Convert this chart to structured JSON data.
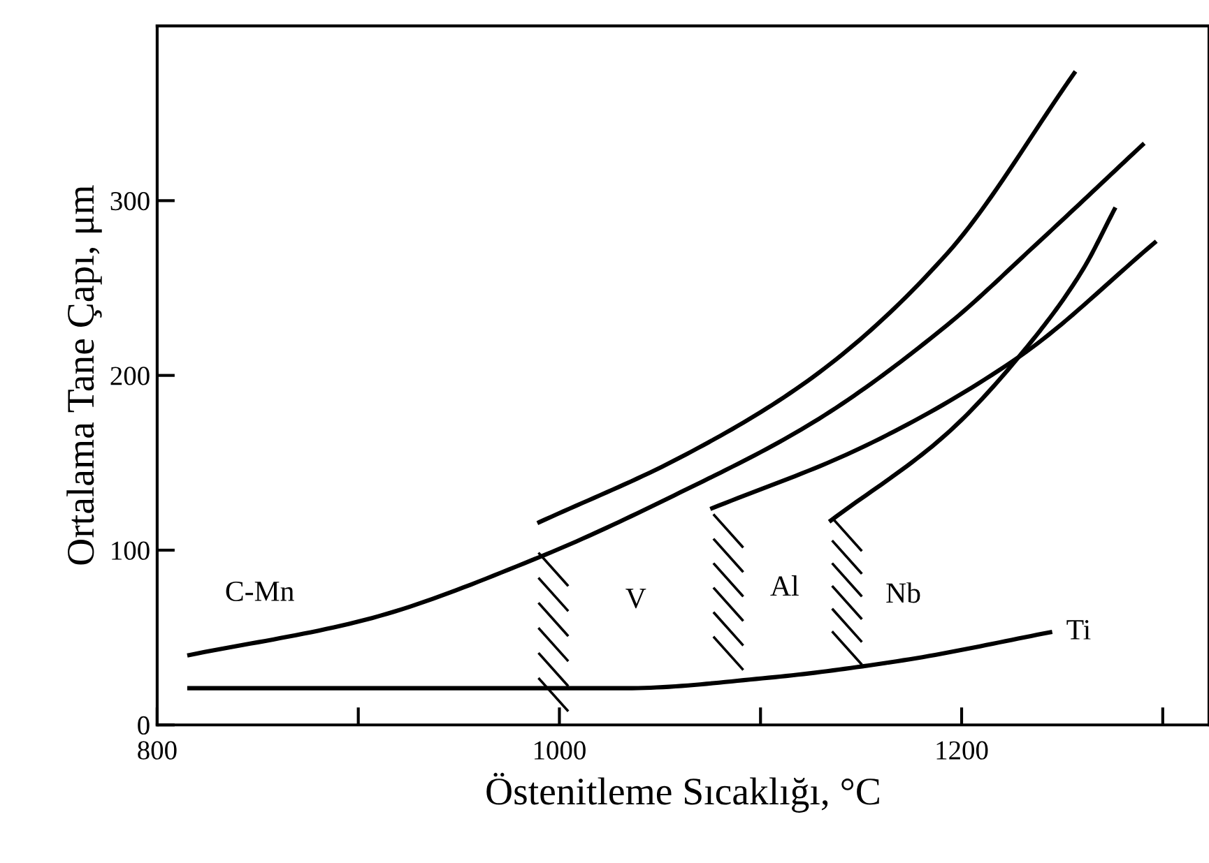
{
  "chart_data": {
    "type": "line",
    "xlabel": "Östenitleme Sıcaklığı, °C",
    "ylabel": "Ortalama Tane Çapı, μm",
    "xlim": [
      800,
      1323
    ],
    "ylim": [
      0,
      400
    ],
    "xticks": [
      800,
      {
        "value": 900,
        "label": null
      },
      1000,
      {
        "value": 1100,
        "label": null
      },
      1200,
      {
        "value": 1300,
        "label": null
      }
    ],
    "yticks": [
      0,
      100,
      200,
      300
    ],
    "grid": false,
    "marker": "none",
    "line_style": "solid",
    "series": [
      {
        "color": "#000000",
        "x": [
          816,
          903,
          990,
          1060,
          1126,
          1193,
          1238,
          1290
        ],
        "values": [
          40,
          60,
          96,
          133,
          173,
          229,
          276,
          332
        ]
      },
      {
        "color": "#000000",
        "x": [
          990,
          1060,
          1126,
          1193,
          1256
        ],
        "values": [
          116,
          153,
          199,
          270,
          373
        ]
      },
      {
        "color": "#000000",
        "x": [
          1076,
          1149,
          1229,
          1296
        ],
        "values": [
          124,
          158,
          211,
          276
        ]
      },
      {
        "color": "#000000",
        "x": [
          1135,
          1193,
          1233,
          1260,
          1276
        ],
        "values": [
          117,
          167,
          217,
          260,
          295
        ]
      },
      {
        "color": "#000000",
        "x": [
          816,
          1033,
          1104,
          1171,
          1244
        ],
        "values": [
          21,
          21,
          27,
          37,
          53
        ]
      }
    ],
    "annotations": [
      "C-Mn",
      "V",
      "Al",
      "Nb",
      "Ti"
    ]
  }
}
